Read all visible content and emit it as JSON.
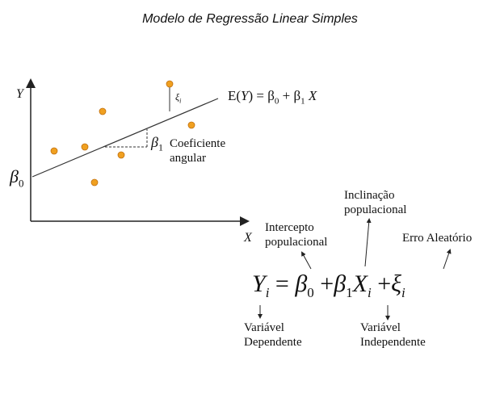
{
  "title": "Modelo de Regressão Linear Simples",
  "axes": {
    "y_label": "Y",
    "x_label": "X"
  },
  "regression_line_label": "E(Y) = β0 + β1 X",
  "regression_line_label_parts": {
    "prefix": "E(",
    "var_y": "Y",
    "mid": ") = β",
    "sub0": "0",
    "plus": " + β",
    "sub1": "1",
    "var_x": " X"
  },
  "beta0_label": "β",
  "beta0_sub": "0",
  "beta1_label": "β",
  "beta1_sub": "1",
  "slope_label": [
    "Coeficiente",
    "angular"
  ],
  "error_symbol": "ξ",
  "error_sub": "i",
  "colors": {
    "points": "#F0A020",
    "point_stroke": "#C07010",
    "lines": "#222222"
  },
  "annotations": {
    "intercept": [
      "Intercepto",
      "populacional"
    ],
    "slope": [
      "Inclinação",
      "populacional"
    ],
    "error": "Erro Aleatório",
    "dependent": [
      "Variável",
      "Dependente"
    ],
    "independent": [
      "Variável",
      "Independente"
    ]
  },
  "equation": {
    "y": "Y",
    "y_sub": "i",
    "eq": "=",
    "b0": "β",
    "b0_sub": "0",
    "plus1": "+",
    "b1": "β",
    "b1_sub": "1",
    "x": "X",
    "x_sub": "i",
    "plus2": "+",
    "err": "ξ",
    "err_sub": "i"
  }
}
